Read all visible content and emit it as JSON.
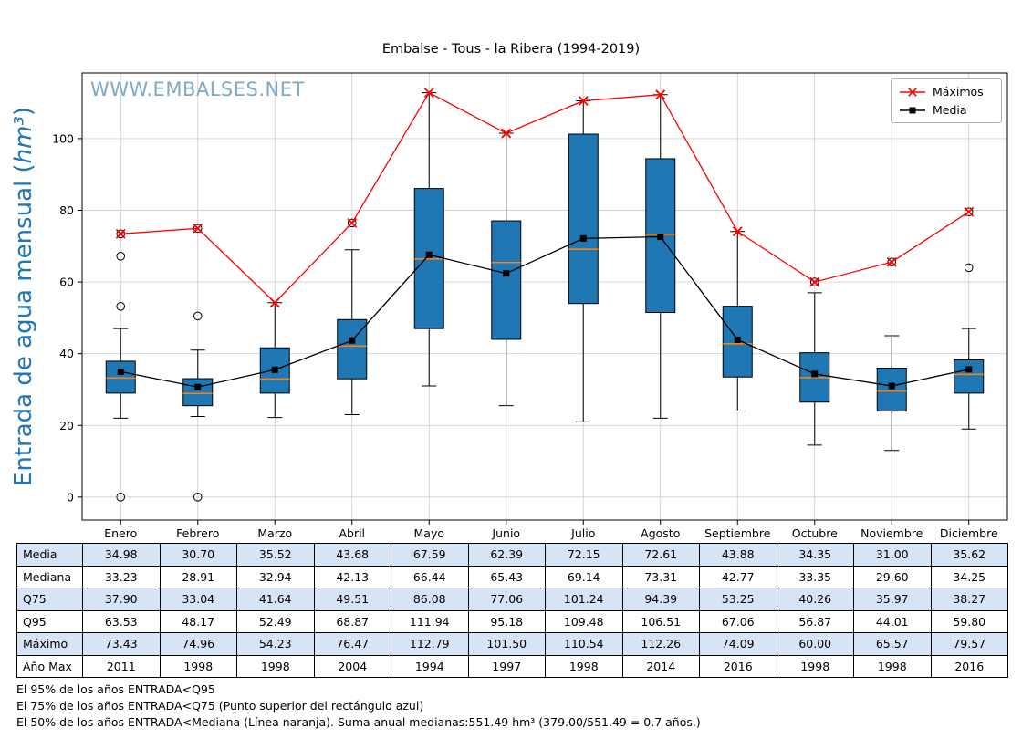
{
  "title": "Embalse - Tous - la Ribera (1994-2019)",
  "watermark": "WWW.EMBALSES.NET",
  "ylabel": {
    "prefix": "Entrada de agua mensual (",
    "unit": "hm³",
    "suffix": ")"
  },
  "colors": {
    "box_fill": "#1f77b4",
    "median_line": "#ff7f0e",
    "maximos_line": "#ff0000",
    "media_line": "#000000",
    "ylabel_text": "#1f77b4",
    "watermark_text": "#7fa8c8",
    "table_shade": "#d6e4f6",
    "grid": "#d0d0d0"
  },
  "chart_data": {
    "type": "boxplot",
    "title": "Embalse - Tous - la Ribera (1994-2019)",
    "ylabel": "Entrada de agua mensual (hm³)",
    "categories": [
      "Enero",
      "Febrero",
      "Marzo",
      "Abril",
      "Mayo",
      "Junio",
      "Julio",
      "Agosto",
      "Septiembre",
      "Octubre",
      "Noviembre",
      "Diciembre"
    ],
    "yticks": [
      0,
      20,
      40,
      60,
      80,
      100
    ],
    "ylim": [
      -6.4,
      118.3
    ],
    "grid": true,
    "legend_position": "upper right",
    "boxes": [
      {
        "q1": 29.0,
        "median": 33.23,
        "q3": 37.9,
        "whislo": 22.0,
        "whishi": 47.0,
        "outliers": [
          0.0,
          53.2,
          67.2,
          73.43
        ]
      },
      {
        "q1": 25.5,
        "median": 28.91,
        "q3": 33.04,
        "whislo": 22.5,
        "whishi": 41.0,
        "outliers": [
          0.0,
          50.5,
          74.96
        ]
      },
      {
        "q1": 29.0,
        "median": 32.94,
        "q3": 41.64,
        "whislo": 22.2,
        "whishi": 54.23,
        "outliers": []
      },
      {
        "q1": 33.0,
        "median": 42.13,
        "q3": 49.51,
        "whislo": 23.0,
        "whishi": 69.0,
        "outliers": [
          76.47
        ]
      },
      {
        "q1": 47.0,
        "median": 66.44,
        "q3": 86.08,
        "whislo": 31.0,
        "whishi": 112.79,
        "outliers": []
      },
      {
        "q1": 44.0,
        "median": 65.43,
        "q3": 77.06,
        "whislo": 25.5,
        "whishi": 101.5,
        "outliers": []
      },
      {
        "q1": 54.0,
        "median": 69.14,
        "q3": 101.24,
        "whislo": 21.0,
        "whishi": 110.54,
        "outliers": []
      },
      {
        "q1": 51.5,
        "median": 73.31,
        "q3": 94.39,
        "whislo": 22.0,
        "whishi": 112.26,
        "outliers": []
      },
      {
        "q1": 33.5,
        "median": 42.77,
        "q3": 53.25,
        "whislo": 24.0,
        "whishi": 74.09,
        "outliers": []
      },
      {
        "q1": 26.5,
        "median": 33.35,
        "q3": 40.26,
        "whislo": 14.5,
        "whishi": 57.0,
        "outliers": [
          60.0
        ]
      },
      {
        "q1": 24.0,
        "median": 29.6,
        "q3": 35.97,
        "whislo": 13.0,
        "whishi": 45.0,
        "outliers": [
          65.57
        ]
      },
      {
        "q1": 29.0,
        "median": 34.25,
        "q3": 38.27,
        "whislo": 19.0,
        "whishi": 47.0,
        "outliers": [
          64.0,
          79.57
        ]
      }
    ],
    "series": [
      {
        "name": "Máximos",
        "marker": "x",
        "color": "#ff0000",
        "values": [
          73.43,
          74.96,
          54.23,
          76.47,
          112.79,
          101.5,
          110.54,
          112.26,
          74.09,
          60.0,
          65.57,
          79.57
        ]
      },
      {
        "name": "Media",
        "marker": "square",
        "color": "#000000",
        "values": [
          34.98,
          30.7,
          35.52,
          43.68,
          67.59,
          62.39,
          72.15,
          72.61,
          43.88,
          34.35,
          31.0,
          35.62
        ]
      }
    ]
  },
  "table": {
    "row_labels": [
      "Media",
      "Mediana",
      "Q75",
      "Q95",
      "Máximo",
      "Año Max"
    ],
    "rows": [
      [
        "34.98",
        "30.70",
        "35.52",
        "43.68",
        "67.59",
        "62.39",
        "72.15",
        "72.61",
        "43.88",
        "34.35",
        "31.00",
        "35.62"
      ],
      [
        "33.23",
        "28.91",
        "32.94",
        "42.13",
        "66.44",
        "65.43",
        "69.14",
        "73.31",
        "42.77",
        "33.35",
        "29.60",
        "34.25"
      ],
      [
        "37.90",
        "33.04",
        "41.64",
        "49.51",
        "86.08",
        "77.06",
        "101.24",
        "94.39",
        "53.25",
        "40.26",
        "35.97",
        "38.27"
      ],
      [
        "63.53",
        "48.17",
        "52.49",
        "68.87",
        "111.94",
        "95.18",
        "109.48",
        "106.51",
        "67.06",
        "56.87",
        "44.01",
        "59.80"
      ],
      [
        "73.43",
        "74.96",
        "54.23",
        "76.47",
        "112.79",
        "101.50",
        "110.54",
        "112.26",
        "74.09",
        "60.00",
        "65.57",
        "79.57"
      ],
      [
        "2011",
        "1998",
        "1998",
        "2004",
        "1994",
        "1997",
        "1998",
        "2014",
        "2016",
        "1998",
        "1998",
        "2016"
      ]
    ]
  },
  "footnotes": [
    "El 95% de los años ENTRADA<Q95",
    "El 75% de los años ENTRADA<Q75 (Punto superior del rectángulo azul)",
    "El 50% de los años ENTRADA<Mediana (Línea naranja). Suma anual medianas:551.49 hm³ (379.00/551.49 = 0.7 años.)"
  ]
}
